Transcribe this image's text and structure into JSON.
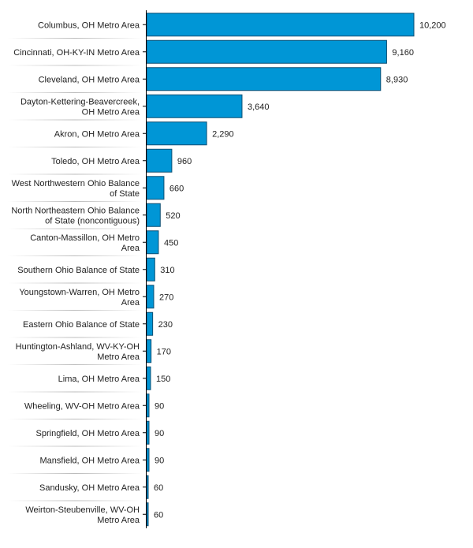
{
  "chart_data": {
    "type": "bar",
    "orientation": "horizontal",
    "title": "",
    "xlabel": "",
    "ylabel": "",
    "xlim": [
      0,
      10200
    ],
    "grid": false,
    "colors": {
      "bar": "#0096d6",
      "bar_border": "#0b4f73",
      "axis": "#000000",
      "separator": "#cccccc"
    },
    "categories": [
      [
        "Columbus, OH Metro Area"
      ],
      [
        "Cincinnati, OH-KY-IN Metro Area"
      ],
      [
        "Cleveland, OH Metro Area"
      ],
      [
        "Dayton-Kettering-Beavercreek,",
        "OH Metro Area"
      ],
      [
        "Akron, OH Metro Area"
      ],
      [
        "Toledo, OH Metro Area"
      ],
      [
        "West Northwestern Ohio Balance",
        "of State"
      ],
      [
        "North Northeastern Ohio Balance",
        "of State (noncontiguous)"
      ],
      [
        "Canton-Massillon, OH Metro",
        "Area"
      ],
      [
        "Southern Ohio Balance of State"
      ],
      [
        "Youngstown-Warren, OH Metro",
        "Area"
      ],
      [
        "Eastern Ohio Balance of State"
      ],
      [
        "Huntington-Ashland, WV-KY-OH",
        "Metro Area"
      ],
      [
        "Lima, OH Metro Area"
      ],
      [
        "Wheeling, WV-OH Metro Area"
      ],
      [
        "Springfield, OH Metro Area"
      ],
      [
        "Mansfield, OH Metro Area"
      ],
      [
        "Sandusky, OH Metro Area"
      ],
      [
        "Weirton-Steubenville, WV-OH",
        "Metro Area"
      ]
    ],
    "values": [
      10200,
      9160,
      8930,
      3640,
      2290,
      960,
      660,
      520,
      450,
      310,
      270,
      230,
      170,
      150,
      90,
      90,
      90,
      60,
      60
    ],
    "data_labels": [
      "10,200",
      "9,160",
      "8,930",
      "3,640",
      "2,290",
      "960",
      "660",
      "520",
      "450",
      "310",
      "270",
      "230",
      "170",
      "150",
      "90",
      "90",
      "90",
      "60",
      "60"
    ]
  }
}
